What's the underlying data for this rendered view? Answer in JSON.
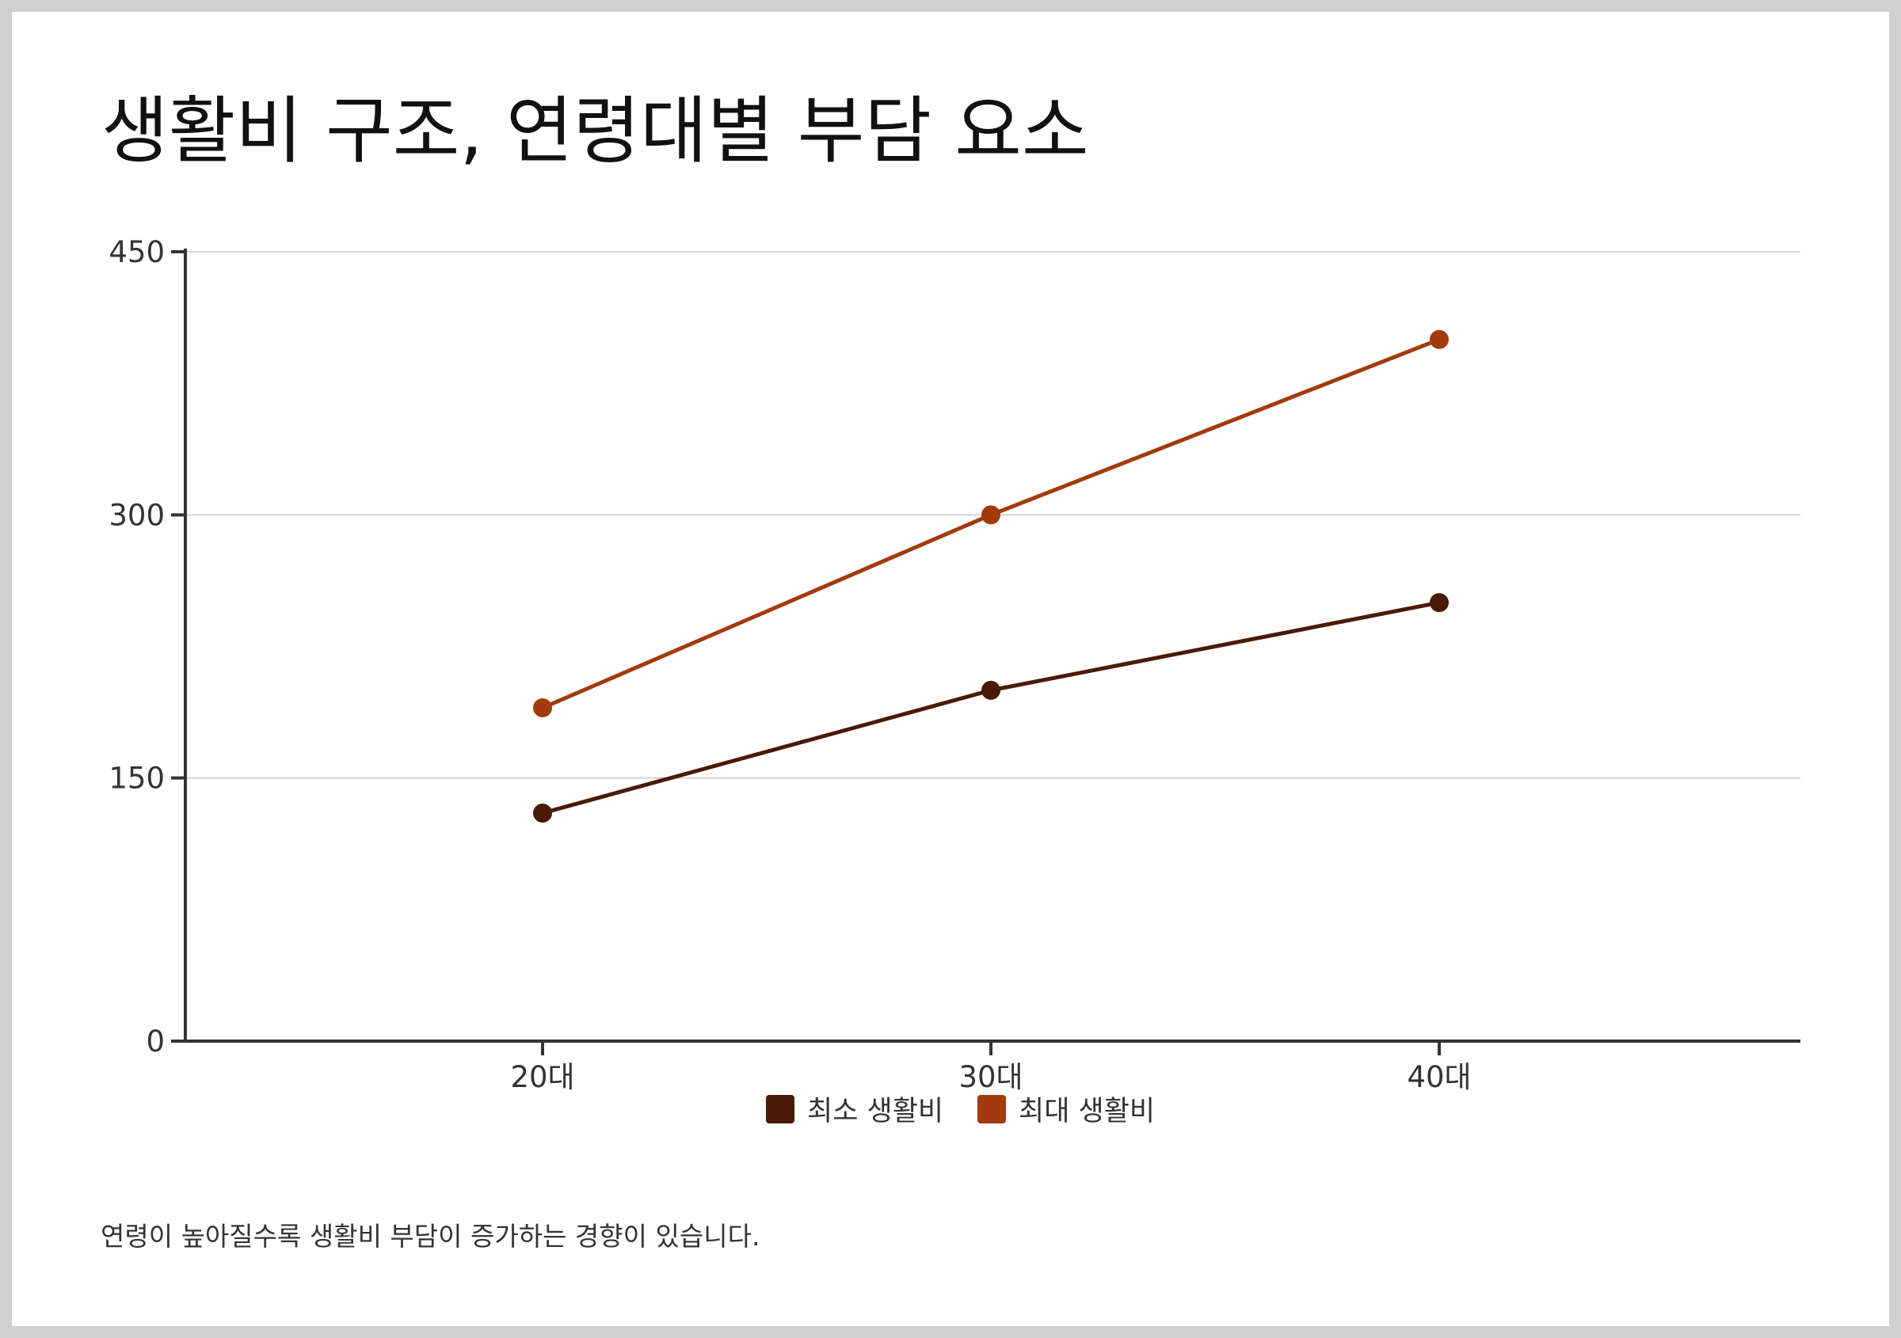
{
  "title": "생활비 구조, 연령대별 부담 요소",
  "caption": "연령이 높아질수록 생활비 부담이 증가하는 경향이 있습니다.",
  "chart_data": {
    "type": "line",
    "title": "생활비 구조, 연령대별 부담 요소",
    "xlabel": "",
    "ylabel": "",
    "categories": [
      "20대",
      "30대",
      "40대"
    ],
    "ylim": [
      0,
      450
    ],
    "yticks": [
      0,
      150,
      300,
      450
    ],
    "grid": true,
    "legend_position": "bottom-center",
    "series": [
      {
        "name": "최소 생활비",
        "values": [
          130,
          200,
          250
        ],
        "color": "#4a1a06"
      },
      {
        "name": "최대 생활비",
        "values": [
          190,
          300,
          400
        ],
        "color": "#a33a0c"
      }
    ]
  }
}
